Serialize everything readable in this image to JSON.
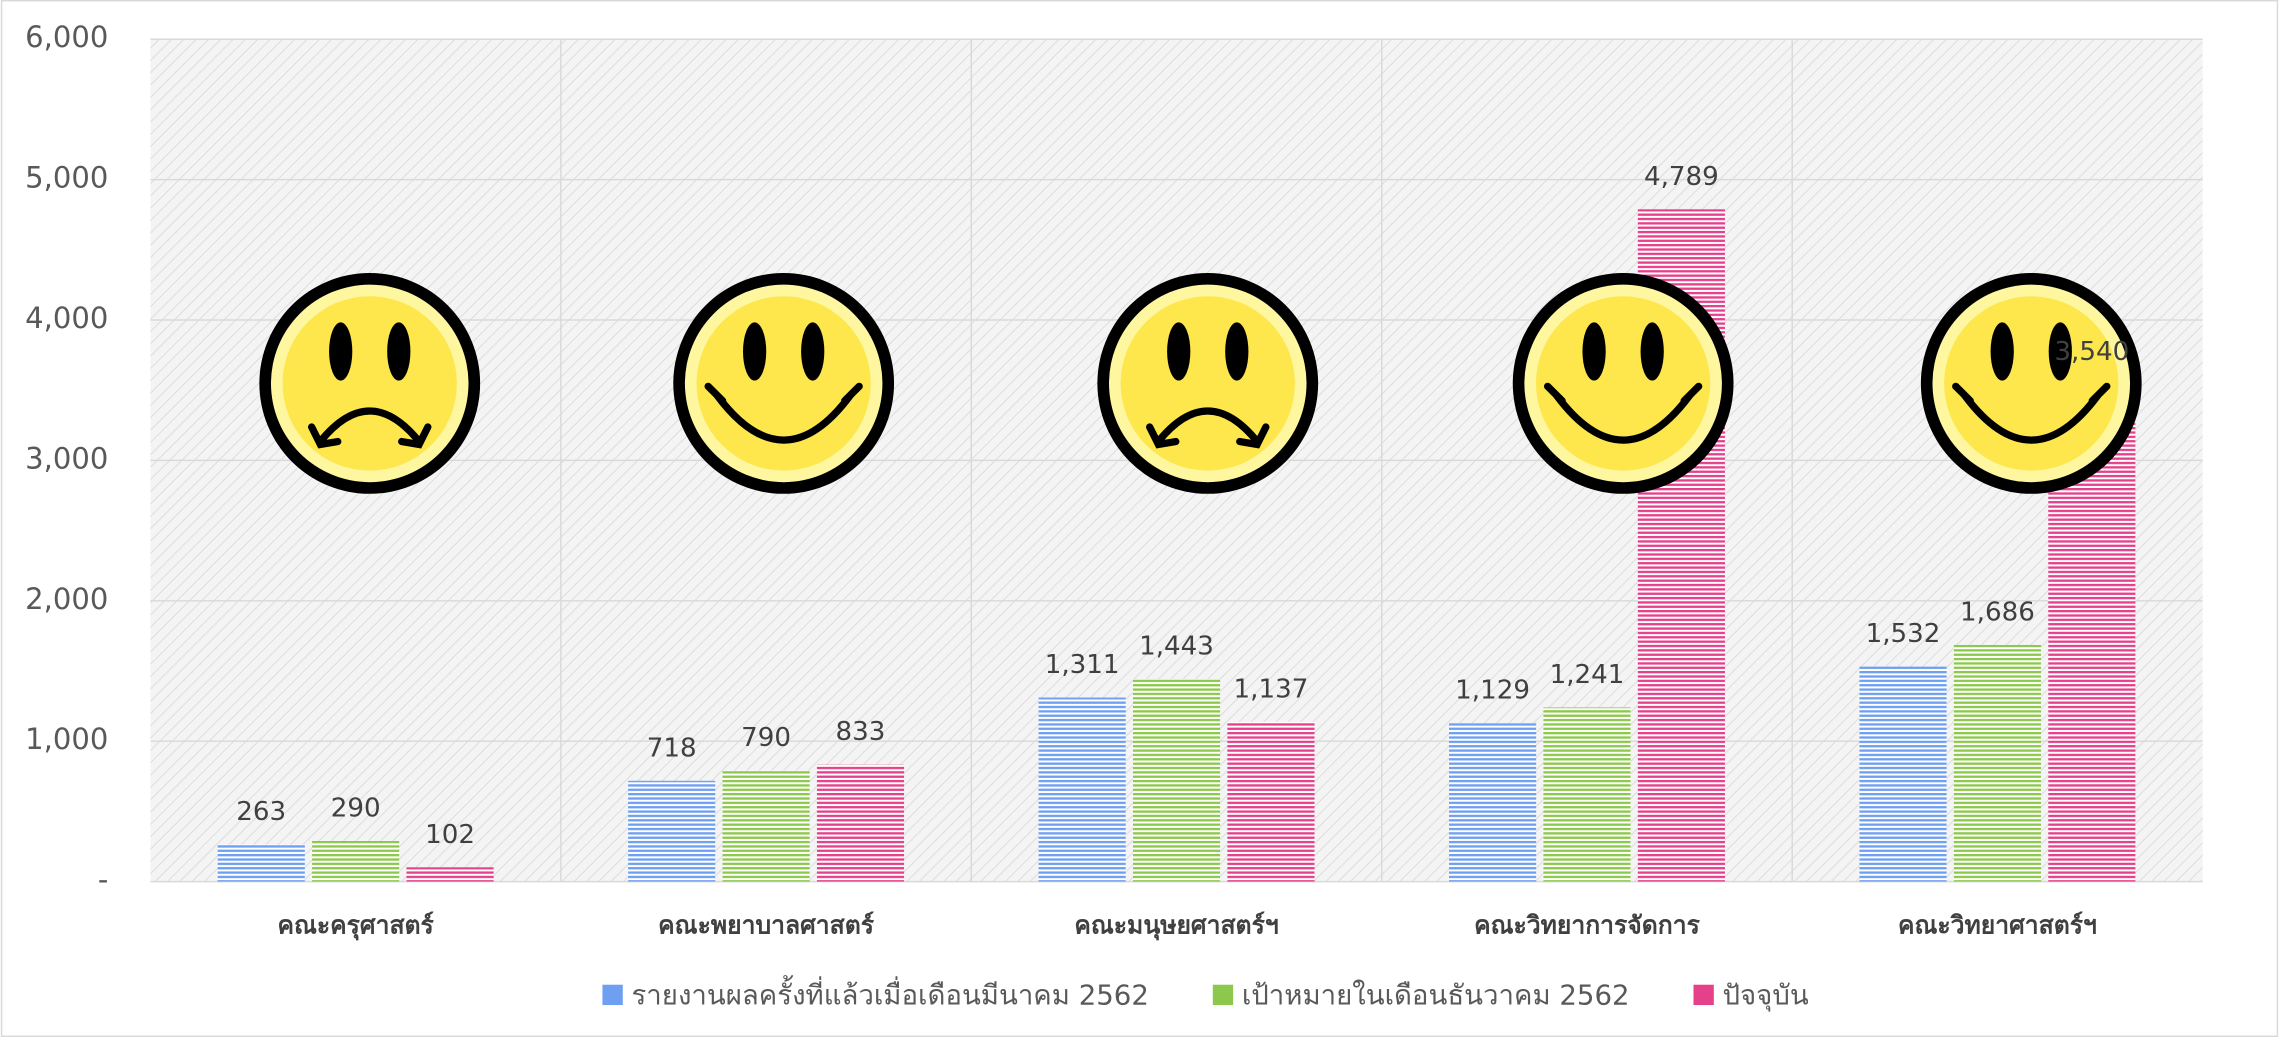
{
  "chart_data": {
    "type": "bar",
    "categories": [
      "คณะครุศาสตร์",
      "คณะพยาบาลศาสตร์",
      "คณะมนุษยศาสตร์ฯ",
      "คณะวิทยาการจัดการ",
      "คณะวิทยาศาสตร์ฯ"
    ],
    "series": [
      {
        "name": "รายงานผลครั้งที่แล้วเมื่อเดือนมีนาคม 2562",
        "color": "#6f9ff0",
        "values": [
          263,
          718,
          1311,
          1129,
          1532
        ],
        "value_labels": [
          "263",
          "718",
          "1,311",
          "1,129",
          "1,532"
        ]
      },
      {
        "name": "เป้าหมายในเดือนธันวาคม 2562",
        "color": "#8cc84b",
        "values": [
          290,
          790,
          1443,
          1241,
          1686
        ],
        "value_labels": [
          "290",
          "790",
          "1,443",
          "1,241",
          "1,686"
        ]
      },
      {
        "name": "ปัจจุบัน",
        "color": "#e5408a",
        "values": [
          102,
          833,
          1137,
          4789,
          3540
        ],
        "value_labels": [
          "102",
          "833",
          "1,137",
          "4,789",
          "3,540"
        ]
      }
    ],
    "ylim": [
      0,
      6000
    ],
    "yticks": [
      {
        "value": 0,
        "label": "-"
      },
      {
        "value": 1000,
        "label": "1,000"
      },
      {
        "value": 2000,
        "label": "2,000"
      },
      {
        "value": 3000,
        "label": "3,000"
      },
      {
        "value": 4000,
        "label": "4,000"
      },
      {
        "value": 5000,
        "label": "5,000"
      },
      {
        "value": 6000,
        "label": "6,000"
      }
    ],
    "grid": true,
    "legend": "bottom"
  }
}
